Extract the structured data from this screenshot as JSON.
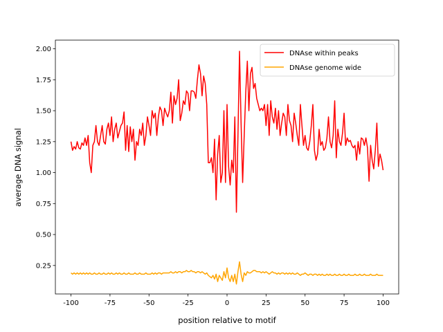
{
  "chart_data": {
    "type": "line",
    "xlabel": "position relative to motif",
    "ylabel": "average DNA signal",
    "legend": "upper right",
    "x": [
      -100,
      -99,
      -98,
      -97,
      -96,
      -95,
      -94,
      -93,
      -92,
      -91,
      -90,
      -89,
      -88,
      -87,
      -86,
      -85,
      -84,
      -83,
      -82,
      -81,
      -80,
      -79,
      -78,
      -77,
      -76,
      -75,
      -74,
      -73,
      -72,
      -71,
      -70,
      -69,
      -68,
      -67,
      -66,
      -65,
      -64,
      -63,
      -62,
      -61,
      -60,
      -59,
      -58,
      -57,
      -56,
      -55,
      -54,
      -53,
      -52,
      -51,
      -50,
      -49,
      -48,
      -47,
      -46,
      -45,
      -44,
      -43,
      -42,
      -41,
      -40,
      -39,
      -38,
      -37,
      -36,
      -35,
      -34,
      -33,
      -32,
      -31,
      -30,
      -29,
      -28,
      -27,
      -26,
      -25,
      -24,
      -23,
      -22,
      -21,
      -20,
      -19,
      -18,
      -17,
      -16,
      -15,
      -14,
      -13,
      -12,
      -11,
      -10,
      -9,
      -8,
      -7,
      -6,
      -5,
      -4,
      -3,
      -2,
      -1,
      0,
      1,
      2,
      3,
      4,
      5,
      6,
      7,
      8,
      9,
      10,
      11,
      12,
      13,
      14,
      15,
      16,
      17,
      18,
      19,
      20,
      21,
      22,
      23,
      24,
      25,
      26,
      27,
      28,
      29,
      30,
      31,
      32,
      33,
      34,
      35,
      36,
      37,
      38,
      39,
      40,
      41,
      42,
      43,
      44,
      45,
      46,
      47,
      48,
      49,
      50,
      51,
      52,
      53,
      54,
      55,
      56,
      57,
      58,
      59,
      60,
      61,
      62,
      63,
      64,
      65,
      66,
      67,
      68,
      69,
      70,
      71,
      72,
      73,
      74,
      75,
      76,
      77,
      78,
      79,
      80,
      81,
      82,
      83,
      84,
      85,
      86,
      87,
      88,
      89,
      90,
      91,
      92,
      93,
      94,
      95,
      96,
      97,
      98,
      99,
      100
    ],
    "series": [
      {
        "name": "DNAse within peaks",
        "color": "#ff0000",
        "values": [
          1.25,
          1.18,
          1.21,
          1.19,
          1.25,
          1.2,
          1.19,
          1.24,
          1.22,
          1.28,
          1.22,
          1.3,
          1.08,
          1.0,
          1.22,
          1.25,
          1.38,
          1.25,
          1.22,
          1.3,
          1.38,
          1.25,
          1.23,
          1.35,
          1.4,
          1.3,
          1.45,
          1.25,
          1.35,
          1.4,
          1.28,
          1.33,
          1.38,
          1.4,
          1.49,
          1.18,
          1.38,
          1.17,
          1.37,
          1.25,
          1.35,
          1.1,
          1.25,
          1.22,
          1.35,
          1.3,
          1.4,
          1.22,
          1.3,
          1.45,
          1.38,
          1.3,
          1.5,
          1.44,
          1.48,
          1.3,
          1.45,
          1.53,
          1.5,
          1.38,
          1.52,
          1.48,
          1.45,
          1.5,
          1.65,
          1.4,
          1.62,
          1.55,
          1.6,
          1.75,
          1.42,
          1.48,
          1.58,
          1.55,
          1.66,
          1.64,
          1.5,
          1.66,
          1.66,
          1.65,
          1.6,
          1.75,
          1.87,
          1.8,
          1.62,
          1.78,
          1.72,
          1.55,
          1.08,
          1.08,
          1.12,
          1.0,
          1.27,
          0.78,
          1.15,
          1.3,
          0.92,
          1.0,
          1.5,
          0.92,
          1.55,
          1.05,
          0.9,
          1.1,
          1.0,
          1.45,
          0.68,
          1.3,
          1.98,
          1.4,
          0.92,
          1.3,
          1.65,
          1.9,
          1.5,
          1.8,
          1.85,
          1.68,
          1.72,
          1.6,
          1.55,
          1.5,
          1.52,
          1.5,
          1.55,
          1.38,
          1.55,
          1.3,
          1.58,
          1.45,
          1.4,
          1.52,
          1.35,
          1.5,
          1.3,
          1.4,
          1.48,
          1.45,
          1.3,
          1.55,
          1.42,
          1.38,
          1.25,
          1.48,
          1.4,
          1.3,
          1.22,
          1.55,
          1.38,
          1.22,
          1.3,
          1.2,
          1.18,
          1.25,
          1.38,
          1.55,
          1.18,
          1.1,
          1.15,
          1.35,
          1.22,
          1.25,
          1.18,
          1.2,
          1.28,
          1.45,
          1.25,
          1.2,
          1.3,
          1.58,
          1.12,
          1.35,
          1.25,
          1.22,
          1.32,
          1.48,
          1.22,
          1.28,
          1.25,
          1.26,
          1.22,
          1.2,
          1.22,
          1.1,
          1.25,
          1.15,
          1.28,
          1.27,
          1.22,
          1.28,
          1.2,
          0.93,
          1.22,
          1.1,
          1.03,
          1.18,
          1.4,
          1.05,
          1.15,
          1.1,
          1.02
        ]
      },
      {
        "name": "DNAse genome wide",
        "color": "#ffa500",
        "values": [
          0.19,
          0.18,
          0.19,
          0.18,
          0.19,
          0.18,
          0.19,
          0.18,
          0.19,
          0.18,
          0.19,
          0.18,
          0.19,
          0.18,
          0.18,
          0.19,
          0.18,
          0.18,
          0.19,
          0.18,
          0.18,
          0.19,
          0.18,
          0.18,
          0.19,
          0.18,
          0.19,
          0.18,
          0.18,
          0.19,
          0.18,
          0.19,
          0.18,
          0.18,
          0.19,
          0.18,
          0.18,
          0.19,
          0.18,
          0.18,
          0.18,
          0.19,
          0.18,
          0.18,
          0.19,
          0.18,
          0.18,
          0.18,
          0.19,
          0.18,
          0.18,
          0.18,
          0.19,
          0.18,
          0.19,
          0.18,
          0.19,
          0.19,
          0.18,
          0.19,
          0.19,
          0.19,
          0.19,
          0.19,
          0.2,
          0.19,
          0.19,
          0.2,
          0.19,
          0.2,
          0.2,
          0.19,
          0.2,
          0.2,
          0.21,
          0.2,
          0.2,
          0.21,
          0.2,
          0.2,
          0.19,
          0.2,
          0.2,
          0.19,
          0.2,
          0.19,
          0.18,
          0.19,
          0.17,
          0.16,
          0.15,
          0.17,
          0.14,
          0.18,
          0.12,
          0.17,
          0.15,
          0.13,
          0.2,
          0.15,
          0.23,
          0.15,
          0.12,
          0.17,
          0.12,
          0.18,
          0.1,
          0.2,
          0.28,
          0.18,
          0.12,
          0.19,
          0.17,
          0.2,
          0.19,
          0.19,
          0.2,
          0.21,
          0.21,
          0.2,
          0.2,
          0.2,
          0.19,
          0.2,
          0.19,
          0.2,
          0.19,
          0.18,
          0.19,
          0.2,
          0.19,
          0.19,
          0.18,
          0.19,
          0.18,
          0.19,
          0.19,
          0.18,
          0.19,
          0.18,
          0.19,
          0.18,
          0.19,
          0.18,
          0.18,
          0.19,
          0.18,
          0.17,
          0.18,
          0.18,
          0.19,
          0.18,
          0.17,
          0.18,
          0.18,
          0.17,
          0.18,
          0.18,
          0.17,
          0.18,
          0.17,
          0.18,
          0.17,
          0.17,
          0.18,
          0.17,
          0.18,
          0.17,
          0.17,
          0.18,
          0.17,
          0.17,
          0.18,
          0.17,
          0.17,
          0.18,
          0.17,
          0.17,
          0.18,
          0.17,
          0.17,
          0.17,
          0.18,
          0.17,
          0.17,
          0.18,
          0.17,
          0.17,
          0.18,
          0.17,
          0.17,
          0.17,
          0.18,
          0.17,
          0.17,
          0.17,
          0.18,
          0.17,
          0.17,
          0.17,
          0.17
        ]
      }
    ],
    "xlim": [
      -110,
      110
    ],
    "xticks": [
      -100,
      -75,
      -50,
      -25,
      0,
      25,
      50,
      75,
      100
    ],
    "ylim": [
      0.02,
      2.07
    ],
    "yticks": [
      {
        "value": 0.25,
        "label": "0.25"
      },
      {
        "value": 0.5,
        "label": "0.50"
      },
      {
        "value": 0.75,
        "label": "0.75"
      },
      {
        "value": 1,
        "label": "1.00"
      },
      {
        "value": 1.25,
        "label": "1.25"
      },
      {
        "value": 1.5,
        "label": "1.50"
      },
      {
        "value": 1.75,
        "label": "1.75"
      },
      {
        "value": 2,
        "label": "2.00"
      }
    ]
  }
}
